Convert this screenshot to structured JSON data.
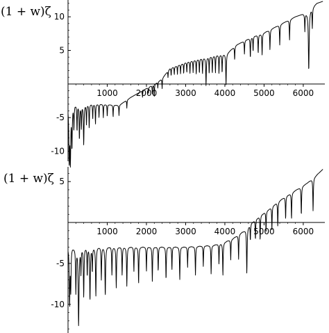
{
  "chart_data": [
    {
      "type": "line",
      "ylabel": "(1 + w)ζ",
      "xlim": [
        0,
        6550
      ],
      "ylim": [
        -11.5,
        12.5
      ],
      "xticks": [
        1000,
        2000,
        3000,
        4000,
        5000,
        6000
      ],
      "yticks": [
        -10,
        -5,
        5,
        10
      ],
      "xticklabels": [
        "1000",
        "2000",
        "3000",
        "4000",
        "5000",
        "6000"
      ],
      "yticklabels": [
        "-10",
        "-5",
        "5",
        "10"
      ],
      "grid": false,
      "series": [
        {
          "baseline": {
            "x": [
              0,
              300,
              800,
              1300,
              1600,
              1900,
              2150,
              2300,
              2400,
              2600,
              3000,
              3400,
              3800,
              4050,
              4300,
              4700,
              5000,
              5400,
              5800,
              6100,
              6200,
              6350,
              6500
            ],
            "y": [
              -3.0,
              -3.0,
              -3.0,
              -3.2,
              -2.0,
              -1.0,
              -0.2,
              0.3,
              0.8,
              2.3,
              3.2,
              3.8,
              4.3,
              4.5,
              5.8,
              7.0,
              7.6,
              8.8,
              10.0,
              10.6,
              11.2,
              12.0,
              12.3
            ]
          },
          "dips": [
            {
              "x": 30,
              "depth": 8.2
            },
            {
              "x": 60,
              "depth": 8.0
            },
            {
              "x": 100,
              "depth": 6.0
            },
            {
              "x": 150,
              "depth": 3.5
            },
            {
              "x": 230,
              "depth": 4.0
            },
            {
              "x": 290,
              "depth": 5.2
            },
            {
              "x": 340,
              "depth": 3.5
            },
            {
              "x": 400,
              "depth": 6.0
            },
            {
              "x": 470,
              "depth": 3.0
            },
            {
              "x": 540,
              "depth": 3.6
            },
            {
              "x": 630,
              "depth": 2.2
            },
            {
              "x": 700,
              "depth": 3.0
            },
            {
              "x": 790,
              "depth": 2.0
            },
            {
              "x": 900,
              "depth": 2.0
            },
            {
              "x": 1000,
              "depth": 1.8
            },
            {
              "x": 1150,
              "depth": 1.8
            },
            {
              "x": 1300,
              "depth": 1.5
            },
            {
              "x": 1500,
              "depth": 1.2
            },
            {
              "x": 1900,
              "depth": 1.0
            },
            {
              "x": 2050,
              "depth": 1.0
            },
            {
              "x": 2150,
              "depth": 1.2
            },
            {
              "x": 2200,
              "depth": 1.8
            },
            {
              "x": 2290,
              "depth": 0.9
            },
            {
              "x": 2400,
              "depth": 1.5
            },
            {
              "x": 2550,
              "depth": 1.0
            },
            {
              "x": 2630,
              "depth": 1.2
            },
            {
              "x": 2710,
              "depth": 1.2
            },
            {
              "x": 2790,
              "depth": 1.3
            },
            {
              "x": 2870,
              "depth": 1.4
            },
            {
              "x": 2950,
              "depth": 1.6
            },
            {
              "x": 3030,
              "depth": 1.6
            },
            {
              "x": 3110,
              "depth": 1.8
            },
            {
              "x": 3190,
              "depth": 1.8
            },
            {
              "x": 3270,
              "depth": 2.2
            },
            {
              "x": 3350,
              "depth": 2.2
            },
            {
              "x": 3430,
              "depth": 2.3
            },
            {
              "x": 3520,
              "depth": 4.2
            },
            {
              "x": 3600,
              "depth": 2.5
            },
            {
              "x": 3680,
              "depth": 2.6
            },
            {
              "x": 3760,
              "depth": 2.6
            },
            {
              "x": 3850,
              "depth": 2.8
            },
            {
              "x": 3930,
              "depth": 2.8
            },
            {
              "x": 4030,
              "depth": 4.6
            },
            {
              "x": 4250,
              "depth": 2.0
            },
            {
              "x": 4500,
              "depth": 2.0
            },
            {
              "x": 4650,
              "depth": 3.0
            },
            {
              "x": 4720,
              "depth": 2.2
            },
            {
              "x": 4850,
              "depth": 2.8
            },
            {
              "x": 4950,
              "depth": 3.2
            },
            {
              "x": 5150,
              "depth": 3.0
            },
            {
              "x": 5400,
              "depth": 3.0
            },
            {
              "x": 5650,
              "depth": 3.0
            },
            {
              "x": 6040,
              "depth": 2.6
            },
            {
              "x": 6140,
              "depth": 8.8
            },
            {
              "x": 6230,
              "depth": 3.0
            }
          ]
        }
      ]
    },
    {
      "type": "line",
      "ylabel": "(1 + w)ζ",
      "xlim": [
        0,
        6550
      ],
      "ylim": [
        -13.5,
        6.8
      ],
      "xticks": [
        1000,
        2000,
        3000,
        4000,
        5000,
        6000
      ],
      "yticks": [
        -10,
        -5,
        5
      ],
      "xticklabels": [
        "1000",
        "2000",
        "3000",
        "4000",
        "5000",
        "6000"
      ],
      "yticklabels": [
        "-10",
        "-5",
        "5"
      ],
      "grid": false,
      "series": [
        {
          "baseline": {
            "x": [
              0,
              3000,
              3700,
              3950,
              4200,
              4500,
              4700,
              4900,
              5100,
              5300,
              5500,
              5700,
              5900,
              6100,
              6300,
              6500
            ],
            "y": [
              -3.0,
              -3.0,
              -2.8,
              -2.5,
              -2.0,
              -1.0,
              0.0,
              0.8,
              1.5,
              2.3,
              3.0,
              3.6,
              4.2,
              4.8,
              5.6,
              6.5
            ]
          },
          "dips": [
            {
              "x": 40,
              "depth": 7.0
            },
            {
              "x": 70,
              "depth": 5.0
            },
            {
              "x": 200,
              "depth": 5.5
            },
            {
              "x": 270,
              "depth": 9.5
            },
            {
              "x": 330,
              "depth": 3.0
            },
            {
              "x": 400,
              "depth": 6.0
            },
            {
              "x": 490,
              "depth": 3.5
            },
            {
              "x": 560,
              "depth": 6.5
            },
            {
              "x": 620,
              "depth": 3.0
            },
            {
              "x": 710,
              "depth": 6.0
            },
            {
              "x": 850,
              "depth": 4.0
            },
            {
              "x": 950,
              "depth": 6.0
            },
            {
              "x": 1120,
              "depth": 3.5
            },
            {
              "x": 1230,
              "depth": 5.0
            },
            {
              "x": 1380,
              "depth": 3.5
            },
            {
              "x": 1500,
              "depth": 4.8
            },
            {
              "x": 1680,
              "depth": 3.0
            },
            {
              "x": 1800,
              "depth": 4.5
            },
            {
              "x": 2000,
              "depth": 3.0
            },
            {
              "x": 2150,
              "depth": 4.2
            },
            {
              "x": 2300,
              "depth": 3.0
            },
            {
              "x": 2500,
              "depth": 4.0
            },
            {
              "x": 2650,
              "depth": 2.8
            },
            {
              "x": 2850,
              "depth": 4.0
            },
            {
              "x": 3050,
              "depth": 2.5
            },
            {
              "x": 3250,
              "depth": 3.5
            },
            {
              "x": 3450,
              "depth": 2.5
            },
            {
              "x": 3650,
              "depth": 3.5
            },
            {
              "x": 3850,
              "depth": 2.5
            },
            {
              "x": 3950,
              "depth": 4.0
            },
            {
              "x": 4150,
              "depth": 2.5
            },
            {
              "x": 4350,
              "depth": 3.0
            },
            {
              "x": 4560,
              "depth": 5.5
            },
            {
              "x": 4650,
              "depth": 2.0
            },
            {
              "x": 4780,
              "depth": 2.5
            },
            {
              "x": 4900,
              "depth": 3.0
            },
            {
              "x": 5050,
              "depth": 2.5
            },
            {
              "x": 5200,
              "depth": 2.8
            },
            {
              "x": 5350,
              "depth": 3.0
            },
            {
              "x": 5550,
              "depth": 2.8
            },
            {
              "x": 5700,
              "depth": 3.2
            },
            {
              "x": 5950,
              "depth": 3.5
            },
            {
              "x": 6250,
              "depth": 4.0
            }
          ]
        }
      ]
    }
  ]
}
